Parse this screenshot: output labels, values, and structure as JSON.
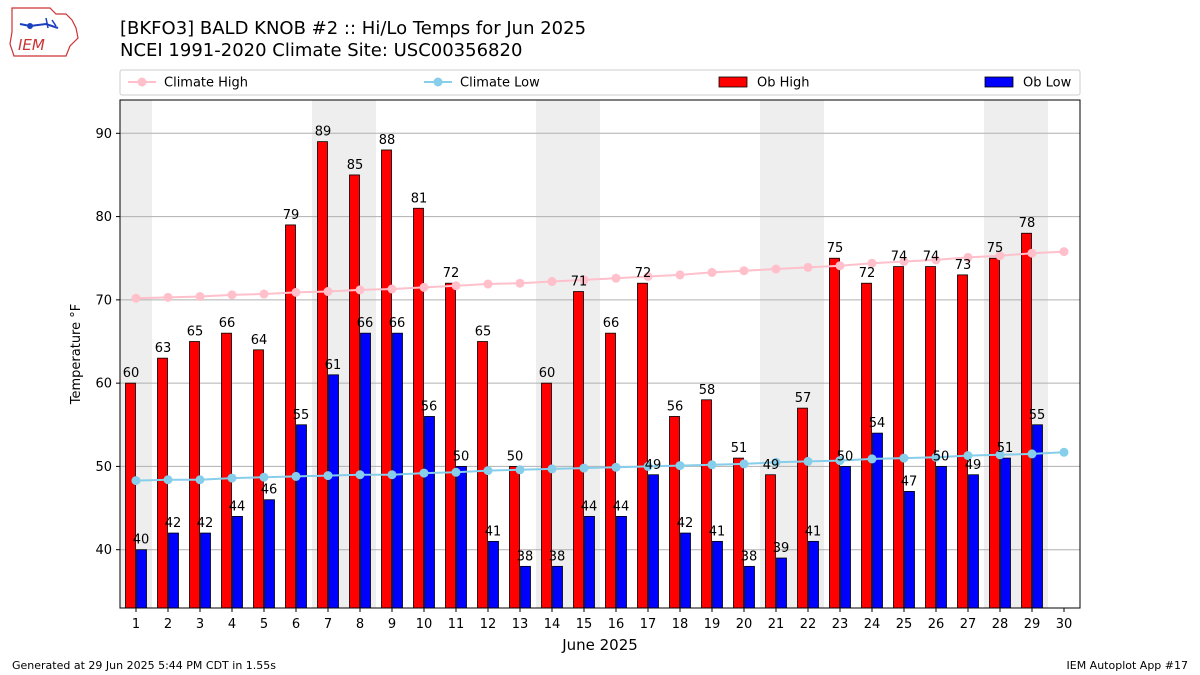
{
  "header": {
    "title_line1": "[BKFO3] BALD KNOB #2 :: Hi/Lo Temps for Jun 2025",
    "title_line2": "NCEI 1991-2020 Climate Site: USC00356820",
    "logo_text": "IEM"
  },
  "footer": {
    "generated": "Generated at 29 Jun 2025 5:44 PM CDT in 1.55s",
    "app": "IEM Autoplot App #17"
  },
  "colors": {
    "ob_high": "#ff0000",
    "ob_low": "#0000ff",
    "climate_high": "#ffc0cb",
    "climate_low": "#87ceeb",
    "weekend_band": "#eeeeee",
    "grid": "#b0b0b0"
  },
  "chart_data": {
    "type": "bar",
    "xlabel": "June 2025",
    "ylabel": "Temperature °F",
    "ylim": [
      33,
      94
    ],
    "yticks": [
      40,
      50,
      60,
      70,
      80,
      90
    ],
    "grid": "horizontal",
    "legend_position": "top",
    "days": [
      1,
      2,
      3,
      4,
      5,
      6,
      7,
      8,
      9,
      10,
      11,
      12,
      13,
      14,
      15,
      16,
      17,
      18,
      19,
      20,
      21,
      22,
      23,
      24,
      25,
      26,
      27,
      28,
      29,
      30
    ],
    "shaded_days": [
      1,
      7,
      8,
      14,
      15,
      21,
      22,
      28,
      29
    ],
    "series": [
      {
        "name": "Climate High",
        "kind": "line",
        "values": [
          70.2,
          70.3,
          70.4,
          70.6,
          70.7,
          70.9,
          71.0,
          71.2,
          71.3,
          71.5,
          71.7,
          71.9,
          72.0,
          72.2,
          72.4,
          72.6,
          72.8,
          73.0,
          73.3,
          73.5,
          73.7,
          73.9,
          74.1,
          74.4,
          74.6,
          74.8,
          75.1,
          75.3,
          75.6,
          75.8
        ]
      },
      {
        "name": "Climate Low",
        "kind": "line",
        "values": [
          48.3,
          48.4,
          48.4,
          48.6,
          48.7,
          48.8,
          48.9,
          49.0,
          49.0,
          49.2,
          49.3,
          49.5,
          49.6,
          49.7,
          49.8,
          49.9,
          50.0,
          50.1,
          50.2,
          50.3,
          50.5,
          50.6,
          50.7,
          50.9,
          51.0,
          51.1,
          51.3,
          51.4,
          51.5,
          51.7
        ]
      },
      {
        "name": "Ob High",
        "kind": "bar",
        "values": [
          60,
          63,
          65,
          66,
          64,
          79,
          89,
          85,
          88,
          81,
          72,
          65,
          50,
          60,
          71,
          66,
          72,
          56,
          58,
          51,
          49,
          57,
          75,
          72,
          74,
          74,
          73,
          75,
          78,
          null
        ]
      },
      {
        "name": "Ob Low",
        "kind": "bar",
        "values": [
          40,
          42,
          42,
          44,
          46,
          55,
          61,
          66,
          66,
          56,
          50,
          41,
          38,
          38,
          44,
          44,
          49,
          42,
          41,
          38,
          39,
          41,
          50,
          54,
          47,
          50,
          49,
          51,
          55,
          null
        ]
      }
    ]
  }
}
